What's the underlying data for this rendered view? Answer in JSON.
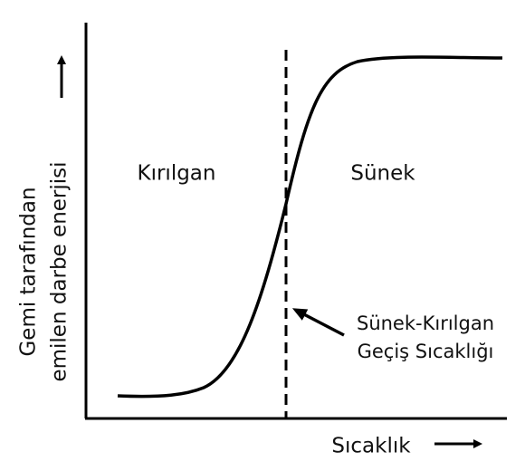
{
  "y_axis": {
    "lines": [
      "Gemi tarafından",
      "emilen darbe enerjisi"
    ]
  },
  "x_axis": {
    "label": "Sıcaklık"
  },
  "regions": {
    "left": "Kırılgan",
    "right": "Sünek"
  },
  "annotation": {
    "lines": [
      "Sünek-Kırılgan",
      "Geçiş Sıcaklığı"
    ]
  }
}
